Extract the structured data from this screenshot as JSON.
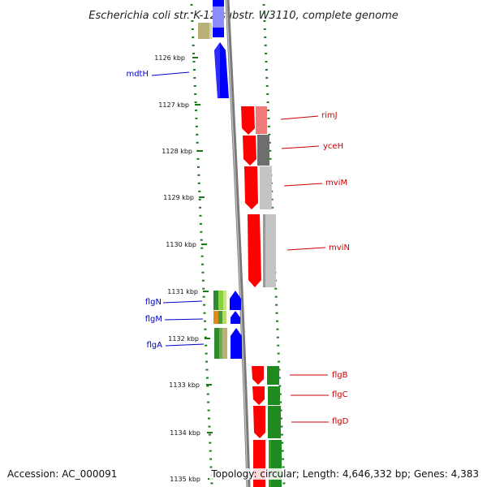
{
  "title": "Escherichia coli str. K-12 substr. W3110, complete genome",
  "footer": {
    "accession": "Accession: AC_000091",
    "topology": "Topology: circular; Length: 4,646,332 bp; Genes: 4,383"
  },
  "colors": {
    "forward": "#ff0000",
    "reverse": "#0000ff",
    "backbone": "#7a7a7a",
    "tick": "#1a7a1a",
    "gene_label_blue": "#0000cc",
    "gene_label_red": "#cc0000",
    "green_gene": "#1f8a1f"
  },
  "ticks": [
    {
      "label": "1126 kbp"
    },
    {
      "label": "1127 kbp"
    },
    {
      "label": "1128 kbp"
    },
    {
      "label": "1129 kbp"
    },
    {
      "label": "1130 kbp"
    },
    {
      "label": "1131 kbp"
    },
    {
      "label": "1132 kbp"
    },
    {
      "label": "1133 kbp"
    },
    {
      "label": "1134 kbp"
    },
    {
      "label": "1135 kbp"
    }
  ],
  "genes": [
    {
      "name": "mdtH",
      "strand": "reverse",
      "color_name": "blue"
    },
    {
      "name": "rimJ",
      "strand": "forward",
      "color_name": "red"
    },
    {
      "name": "yceH",
      "strand": "forward",
      "color_name": "red"
    },
    {
      "name": "mviM",
      "strand": "forward",
      "color_name": "red"
    },
    {
      "name": "mviN",
      "strand": "forward",
      "color_name": "red"
    },
    {
      "name": "flgN",
      "strand": "reverse",
      "color_name": "blue"
    },
    {
      "name": "flgM",
      "strand": "reverse",
      "color_name": "blue"
    },
    {
      "name": "flgA",
      "strand": "reverse",
      "color_name": "blue"
    },
    {
      "name": "flgB",
      "strand": "forward",
      "color_name": "red"
    },
    {
      "name": "flgC",
      "strand": "forward",
      "color_name": "red"
    },
    {
      "name": "flgD",
      "strand": "forward",
      "color_name": "red"
    }
  ]
}
